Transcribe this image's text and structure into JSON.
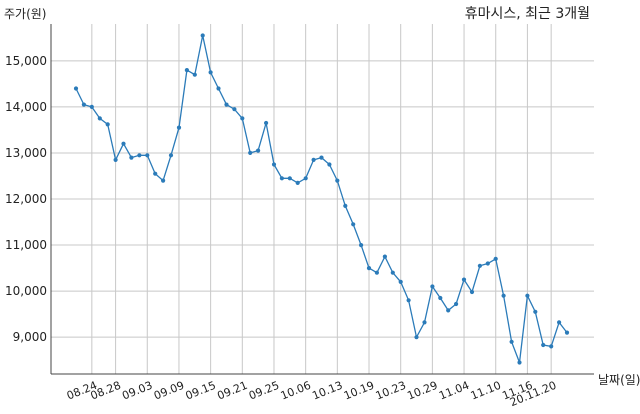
{
  "chart_data": {
    "type": "line",
    "title": "휴마시스, 최근 3개월",
    "ylabel": "주가(원)",
    "xlabel": "날짜(일)",
    "ylim": [
      8200,
      15800
    ],
    "yticks": [
      9000,
      10000,
      11000,
      12000,
      13000,
      14000,
      15000
    ],
    "ytick_labels": [
      "9,000",
      "10,000",
      "11,000",
      "12,000",
      "13,000",
      "14,000",
      "15,000"
    ],
    "grid": true,
    "xtick_labels": [
      "08.24",
      "08.28",
      "09.03",
      "09.09",
      "09.15",
      "09.21",
      "09.25",
      "10.06",
      "10.13",
      "10.19",
      "10.23",
      "10.29",
      "11.04",
      "11.10",
      "11.16",
      "20.11.20"
    ],
    "xtick_index": [
      2,
      5,
      9,
      13,
      17,
      21,
      25,
      29,
      33,
      37,
      41,
      45,
      49,
      53,
      57,
      60
    ],
    "color": "#2b7bb9",
    "series": [
      {
        "values": [
          14400,
          14050,
          14000,
          13750,
          13620,
          12850,
          13200,
          12900,
          12950,
          12950,
          12550,
          12400,
          12950,
          13550,
          14800,
          14700,
          15550,
          14750,
          14400,
          14050,
          13950,
          13750,
          13000,
          13050,
          13650,
          12750,
          12450,
          12450,
          12350,
          12450,
          12850,
          12900,
          12750,
          12400,
          11850,
          11450,
          11000,
          10500,
          10400,
          10750,
          10400,
          10200,
          9800,
          9000,
          9320,
          10100,
          9850,
          9580,
          9720,
          10250,
          9980,
          10550,
          10600,
          10700,
          9900,
          8900,
          8450,
          9900,
          9550,
          8830,
          8800,
          9320,
          9100
        ]
      }
    ]
  }
}
